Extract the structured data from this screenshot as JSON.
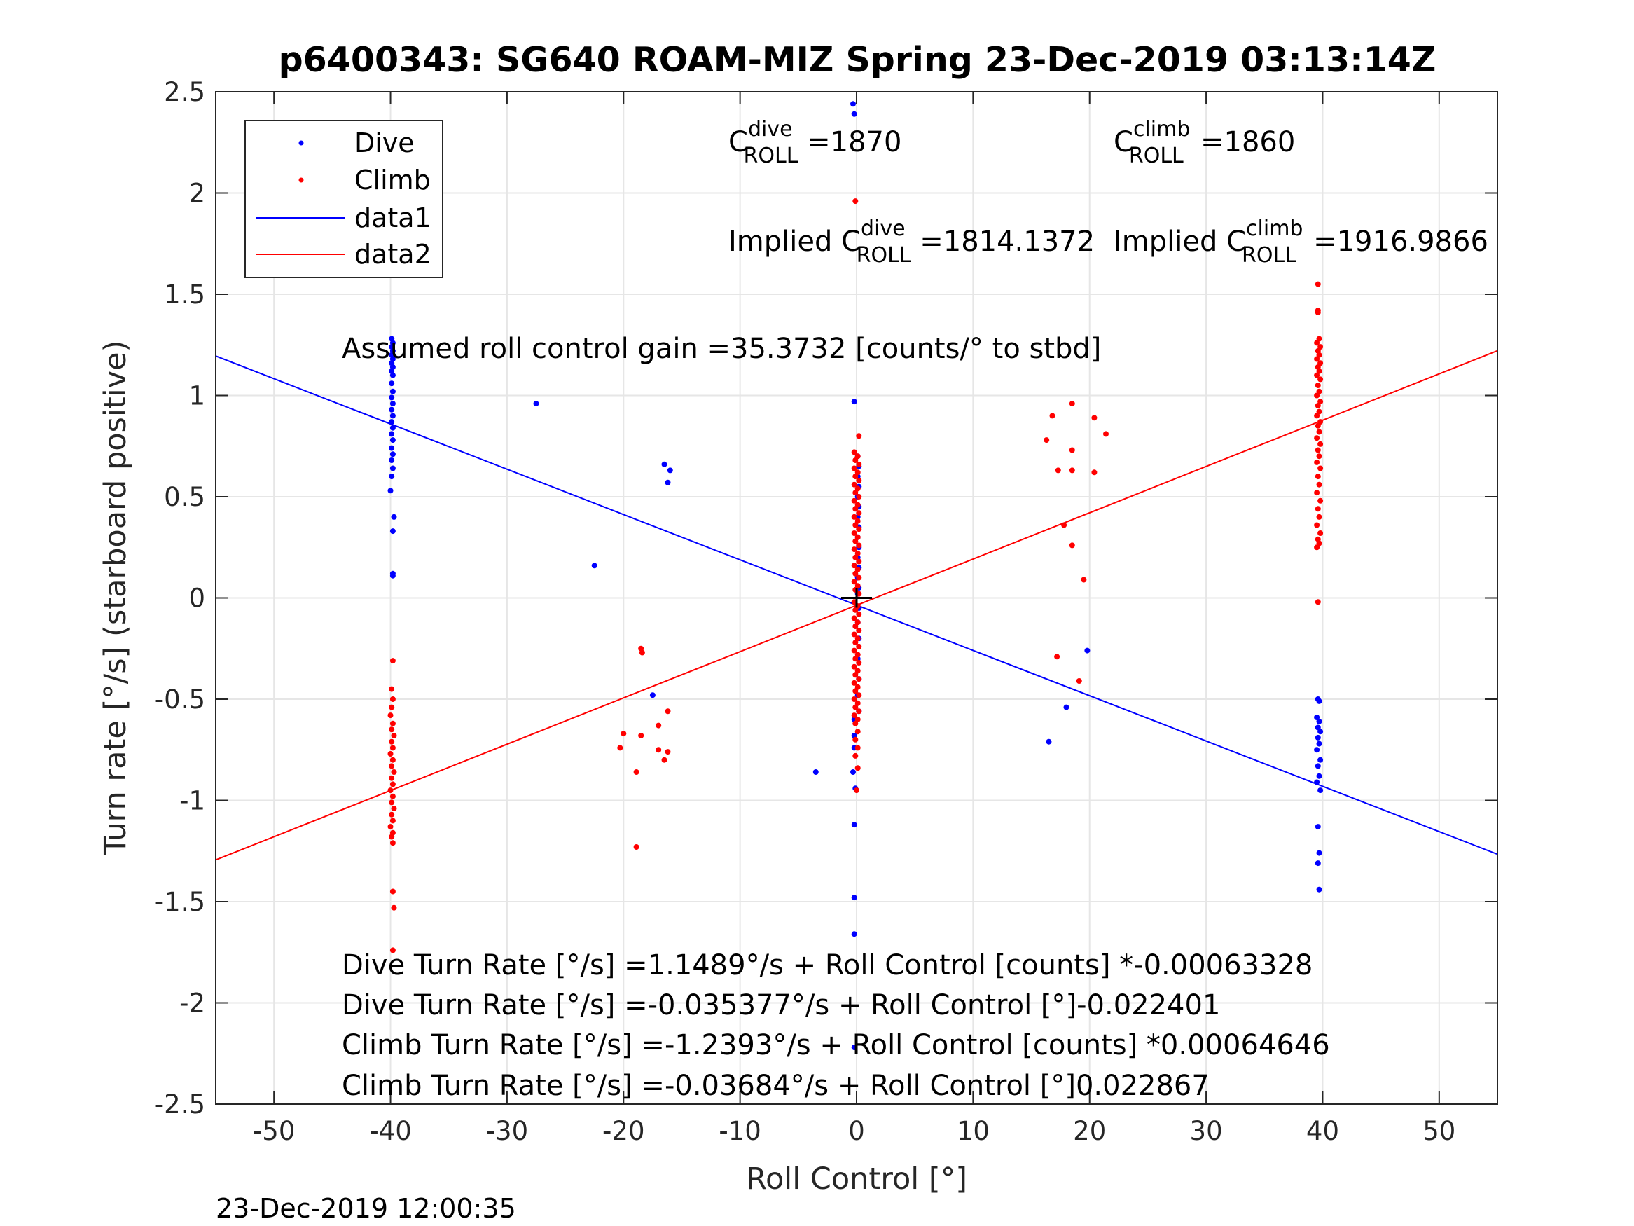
{
  "chart_data": {
    "type": "scatter",
    "title": "p6400343: SG640 ROAM-MIZ Spring 23-Dec-2019 03:13:14Z",
    "xlabel": "Roll Control [°]",
    "ylabel": "Turn rate [°/s] (starboard positive)",
    "xlim": [
      -55,
      55
    ],
    "ylim": [
      -2.5,
      2.5
    ],
    "xticks": [
      -50,
      -40,
      -30,
      -20,
      -10,
      0,
      10,
      20,
      30,
      40,
      50
    ],
    "yticks": [
      2.5,
      2,
      1.5,
      1,
      0.5,
      0,
      -0.5,
      -1,
      -1.5,
      -2,
      -2.5
    ],
    "xtick_labels": [
      "-50",
      "-40",
      "-30",
      "-20",
      "-10",
      "0",
      "10",
      "20",
      "30",
      "40",
      "50"
    ],
    "ytick_labels": [
      "2.5",
      "2",
      "1.5",
      "1",
      "0.5",
      "0",
      "-0.5",
      "-1",
      "-1.5",
      "-2",
      "-2.5"
    ],
    "grid": true,
    "legend": {
      "position": "top-left",
      "entries": [
        {
          "label": "Dive",
          "marker": "dot",
          "color": "#0000ff"
        },
        {
          "label": "Climb",
          "marker": "dot",
          "color": "#ff0000"
        },
        {
          "label": "data1",
          "marker": "line",
          "color": "#0000ff"
        },
        {
          "label": "data2",
          "marker": "line",
          "color": "#ff0000"
        }
      ]
    },
    "colors": {
      "dive": "#0000ff",
      "climb": "#ff0000",
      "axis": "#262626",
      "grid": "#e6e6e6"
    },
    "lines": [
      {
        "name": "data1",
        "color": "#0000ff",
        "x": [
          -55,
          55
        ],
        "y": [
          1.195,
          -1.266
        ]
      },
      {
        "name": "data2",
        "color": "#ff0000",
        "x": [
          -55,
          55
        ],
        "y": [
          -1.294,
          1.221
        ]
      }
    ],
    "center_marker": {
      "x": 0,
      "y": 0
    },
    "series": [
      {
        "name": "Dive",
        "color": "#0000ff",
        "points": [
          [
            -39.9,
            1.28
          ],
          [
            -39.8,
            1.26
          ],
          [
            -39.9,
            1.24
          ],
          [
            -39.8,
            1.22
          ],
          [
            -39.9,
            1.2
          ],
          [
            -39.8,
            1.18
          ],
          [
            -39.9,
            1.16
          ],
          [
            -39.8,
            1.14
          ],
          [
            -39.9,
            1.12
          ],
          [
            -39.8,
            1.1
          ],
          [
            -39.9,
            1.06
          ],
          [
            -39.8,
            1.02
          ],
          [
            -39.9,
            0.99
          ],
          [
            -39.8,
            0.96
          ],
          [
            -39.9,
            0.93
          ],
          [
            -39.8,
            0.9
          ],
          [
            -39.9,
            0.87
          ],
          [
            -39.8,
            0.84
          ],
          [
            -39.9,
            0.81
          ],
          [
            -39.8,
            0.78
          ],
          [
            -39.9,
            0.74
          ],
          [
            -39.8,
            0.71
          ],
          [
            -39.9,
            0.68
          ],
          [
            -39.8,
            0.64
          ],
          [
            -39.9,
            0.6
          ],
          [
            -40.0,
            0.53
          ],
          [
            -39.7,
            0.4
          ],
          [
            -39.8,
            0.33
          ],
          [
            -39.8,
            0.12
          ],
          [
            -39.8,
            0.11
          ],
          [
            -27.5,
            0.96
          ],
          [
            -22.5,
            0.16
          ],
          [
            -16.5,
            0.66
          ],
          [
            -16.0,
            0.63
          ],
          [
            -16.2,
            0.57
          ],
          [
            -17.5,
            -0.48
          ],
          [
            -3.5,
            -0.86
          ],
          [
            -0.3,
            2.44
          ],
          [
            -0.2,
            2.39
          ],
          [
            -0.2,
            0.97
          ],
          [
            0.1,
            0.7
          ],
          [
            0.2,
            0.65
          ],
          [
            0.1,
            0.6
          ],
          [
            0.2,
            0.55
          ],
          [
            0.1,
            0.5
          ],
          [
            0.2,
            0.45
          ],
          [
            0.1,
            0.4
          ],
          [
            0.2,
            0.35
          ],
          [
            0.1,
            0.3
          ],
          [
            0.2,
            0.25
          ],
          [
            0.1,
            0.2
          ],
          [
            0.2,
            0.15
          ],
          [
            0.1,
            0.1
          ],
          [
            0.2,
            0.05
          ],
          [
            0.1,
            0.02
          ],
          [
            0.2,
            -0.05
          ],
          [
            0.1,
            -0.12
          ],
          [
            0.2,
            -0.2
          ],
          [
            0.1,
            -0.3
          ],
          [
            0.2,
            -0.4
          ],
          [
            0.1,
            -0.48
          ],
          [
            0.2,
            -0.56
          ],
          [
            -0.2,
            -0.6
          ],
          [
            -0.2,
            -0.68
          ],
          [
            -0.2,
            -0.74
          ],
          [
            -0.3,
            -0.86
          ],
          [
            -0.1,
            -0.94
          ],
          [
            -0.2,
            -1.12
          ],
          [
            -0.2,
            -1.48
          ],
          [
            -0.2,
            -1.66
          ],
          [
            -0.2,
            -2.22
          ],
          [
            16.5,
            -0.71
          ],
          [
            18.0,
            -0.54
          ],
          [
            19.8,
            -0.26
          ],
          [
            39.6,
            -0.5
          ],
          [
            39.7,
            -0.51
          ],
          [
            39.5,
            -0.59
          ],
          [
            39.7,
            -0.61
          ],
          [
            39.6,
            -0.64
          ],
          [
            39.8,
            -0.66
          ],
          [
            39.6,
            -0.69
          ],
          [
            39.7,
            -0.72
          ],
          [
            39.5,
            -0.75
          ],
          [
            39.8,
            -0.8
          ],
          [
            39.6,
            -0.83
          ],
          [
            39.7,
            -0.88
          ],
          [
            39.5,
            -0.91
          ],
          [
            39.8,
            -0.95
          ],
          [
            39.6,
            -1.13
          ],
          [
            39.7,
            -1.26
          ],
          [
            39.6,
            -1.31
          ],
          [
            39.7,
            -1.44
          ]
        ]
      },
      {
        "name": "Climb",
        "color": "#ff0000",
        "points": [
          [
            -39.8,
            -0.31
          ],
          [
            -39.9,
            -0.45
          ],
          [
            -39.8,
            -0.5
          ],
          [
            -39.9,
            -0.54
          ],
          [
            -40.0,
            -0.58
          ],
          [
            -39.8,
            -0.62
          ],
          [
            -39.9,
            -0.65
          ],
          [
            -39.7,
            -0.68
          ],
          [
            -39.9,
            -0.71
          ],
          [
            -39.8,
            -0.74
          ],
          [
            -40.0,
            -0.77
          ],
          [
            -39.8,
            -0.8
          ],
          [
            -39.9,
            -0.83
          ],
          [
            -39.7,
            -0.86
          ],
          [
            -39.9,
            -0.89
          ],
          [
            -39.8,
            -0.92
          ],
          [
            -40.0,
            -0.95
          ],
          [
            -39.8,
            -0.98
          ],
          [
            -39.9,
            -1.01
          ],
          [
            -39.7,
            -1.04
          ],
          [
            -39.9,
            -1.07
          ],
          [
            -39.8,
            -1.1
          ],
          [
            -40.0,
            -1.13
          ],
          [
            -39.8,
            -1.16
          ],
          [
            -39.9,
            -1.18
          ],
          [
            -39.8,
            -1.21
          ],
          [
            -39.8,
            -1.45
          ],
          [
            -39.7,
            -1.53
          ],
          [
            -39.8,
            -1.74
          ],
          [
            -18.5,
            -0.25
          ],
          [
            -18.4,
            -0.27
          ],
          [
            -20.0,
            -0.67
          ],
          [
            -18.5,
            -0.68
          ],
          [
            -20.3,
            -0.74
          ],
          [
            -17.0,
            -0.63
          ],
          [
            -16.2,
            -0.56
          ],
          [
            -17.0,
            -0.75
          ],
          [
            -16.2,
            -0.76
          ],
          [
            -16.5,
            -0.8
          ],
          [
            -18.9,
            -0.86
          ],
          [
            -18.9,
            -1.23
          ],
          [
            -0.1,
            1.96
          ],
          [
            0.2,
            0.8
          ],
          [
            -0.2,
            0.72
          ],
          [
            0.1,
            0.7
          ],
          [
            -0.1,
            0.68
          ],
          [
            0.2,
            0.66
          ],
          [
            -0.2,
            0.64
          ],
          [
            0.1,
            0.62
          ],
          [
            -0.1,
            0.6
          ],
          [
            0.2,
            0.58
          ],
          [
            -0.2,
            0.56
          ],
          [
            0.1,
            0.54
          ],
          [
            -0.1,
            0.52
          ],
          [
            0.2,
            0.5
          ],
          [
            -0.2,
            0.48
          ],
          [
            0.1,
            0.46
          ],
          [
            -0.1,
            0.44
          ],
          [
            0.2,
            0.42
          ],
          [
            -0.2,
            0.4
          ],
          [
            0.1,
            0.38
          ],
          [
            -0.1,
            0.36
          ],
          [
            0.2,
            0.34
          ],
          [
            -0.2,
            0.32
          ],
          [
            0.1,
            0.3
          ],
          [
            -0.1,
            0.28
          ],
          [
            0.2,
            0.26
          ],
          [
            -0.2,
            0.24
          ],
          [
            0.1,
            0.22
          ],
          [
            -0.1,
            0.2
          ],
          [
            0.2,
            0.18
          ],
          [
            -0.2,
            0.16
          ],
          [
            0.1,
            0.14
          ],
          [
            -0.1,
            0.12
          ],
          [
            0.2,
            0.1
          ],
          [
            -0.2,
            0.08
          ],
          [
            0.1,
            0.06
          ],
          [
            -0.1,
            0.04
          ],
          [
            0.2,
            0.02
          ],
          [
            -0.2,
            -0.02
          ],
          [
            0.1,
            -0.04
          ],
          [
            -0.1,
            -0.06
          ],
          [
            0.2,
            -0.08
          ],
          [
            -0.2,
            -0.1
          ],
          [
            0.1,
            -0.12
          ],
          [
            -0.1,
            -0.14
          ],
          [
            0.2,
            -0.16
          ],
          [
            -0.2,
            -0.18
          ],
          [
            0.1,
            -0.2
          ],
          [
            -0.1,
            -0.22
          ],
          [
            0.2,
            -0.24
          ],
          [
            -0.2,
            -0.26
          ],
          [
            0.1,
            -0.28
          ],
          [
            -0.1,
            -0.3
          ],
          [
            0.2,
            -0.32
          ],
          [
            -0.2,
            -0.34
          ],
          [
            0.1,
            -0.36
          ],
          [
            -0.1,
            -0.38
          ],
          [
            0.2,
            -0.4
          ],
          [
            -0.2,
            -0.42
          ],
          [
            0.1,
            -0.44
          ],
          [
            -0.1,
            -0.46
          ],
          [
            0.2,
            -0.48
          ],
          [
            -0.2,
            -0.5
          ],
          [
            0.1,
            -0.52
          ],
          [
            -0.1,
            -0.54
          ],
          [
            0.2,
            -0.56
          ],
          [
            -0.2,
            -0.58
          ],
          [
            0.1,
            -0.6
          ],
          [
            -0.1,
            -0.62
          ],
          [
            0.1,
            -0.66
          ],
          [
            -0.1,
            -0.7
          ],
          [
            0.1,
            -0.74
          ],
          [
            -0.1,
            -0.78
          ],
          [
            0.1,
            -0.84
          ],
          [
            0.0,
            -0.95
          ],
          [
            16.3,
            0.78
          ],
          [
            16.8,
            0.9
          ],
          [
            18.5,
            0.96
          ],
          [
            20.4,
            0.89
          ],
          [
            21.4,
            0.81
          ],
          [
            18.5,
            0.73
          ],
          [
            17.3,
            0.63
          ],
          [
            18.5,
            0.63
          ],
          [
            20.4,
            0.62
          ],
          [
            17.8,
            0.36
          ],
          [
            18.5,
            0.26
          ],
          [
            19.5,
            0.09
          ],
          [
            17.2,
            -0.29
          ],
          [
            19.1,
            -0.41
          ],
          [
            39.6,
            1.55
          ],
          [
            39.6,
            1.42
          ],
          [
            39.6,
            1.41
          ],
          [
            39.7,
            1.28
          ],
          [
            39.5,
            1.26
          ],
          [
            39.8,
            1.24
          ],
          [
            39.6,
            1.22
          ],
          [
            39.7,
            1.2
          ],
          [
            39.5,
            1.18
          ],
          [
            39.8,
            1.16
          ],
          [
            39.6,
            1.14
          ],
          [
            39.7,
            1.12
          ],
          [
            39.5,
            1.1
          ],
          [
            39.8,
            1.08
          ],
          [
            39.6,
            1.05
          ],
          [
            39.7,
            1.02
          ],
          [
            39.5,
            1.0
          ],
          [
            39.8,
            0.97
          ],
          [
            39.6,
            0.95
          ],
          [
            39.7,
            0.92
          ],
          [
            39.5,
            0.9
          ],
          [
            39.8,
            0.87
          ],
          [
            39.6,
            0.85
          ],
          [
            39.7,
            0.82
          ],
          [
            39.5,
            0.79
          ],
          [
            39.8,
            0.76
          ],
          [
            39.6,
            0.73
          ],
          [
            39.7,
            0.7
          ],
          [
            39.5,
            0.67
          ],
          [
            39.8,
            0.64
          ],
          [
            39.6,
            0.6
          ],
          [
            39.7,
            0.56
          ],
          [
            39.5,
            0.52
          ],
          [
            39.8,
            0.48
          ],
          [
            39.6,
            0.44
          ],
          [
            39.7,
            0.4
          ],
          [
            39.5,
            0.36
          ],
          [
            39.8,
            0.32
          ],
          [
            39.6,
            0.29
          ],
          [
            39.7,
            0.27
          ],
          [
            39.5,
            0.25
          ],
          [
            39.6,
            -0.02
          ]
        ]
      }
    ],
    "annotations": {
      "c_dive": {
        "prefix": "C",
        "sup": "dive",
        "sub": "ROLL",
        "value": " =1870"
      },
      "c_climb": {
        "prefix": "C",
        "sup": "climb",
        "sub": "ROLL",
        "value": " =1860"
      },
      "implied_dive": {
        "prefix": "Implied C",
        "sup": "dive",
        "sub": "ROLL",
        "value": " =1814.1372"
      },
      "implied_climb": {
        "prefix": "Implied C",
        "sup": "climb",
        "sub": "ROLL",
        "value": " =1916.9866"
      },
      "gain": "Assumed roll control gain =35.3732 [counts/° to stbd]",
      "equations": [
        "Dive Turn Rate [°/s] =1.1489°/s + Roll Control [counts] *-0.00063328",
        "Dive Turn Rate [°/s] =-0.035377°/s + Roll Control [°]-0.022401",
        "Climb Turn Rate [°/s] =-1.2393°/s + Roll Control [counts] *0.00064646",
        "Climb Turn Rate [°/s] =-0.03684°/s + Roll Control [°]0.022867"
      ]
    },
    "footer": "23-Dec-2019 12:00:35"
  }
}
